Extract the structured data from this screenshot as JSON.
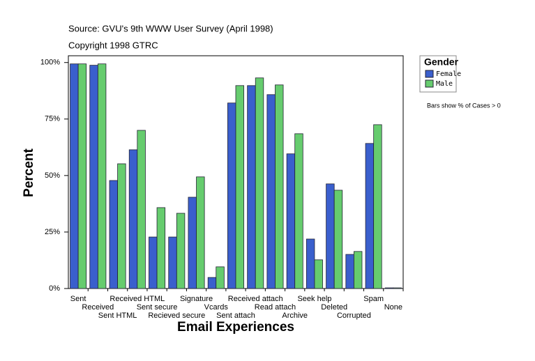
{
  "chart_data": {
    "type": "bar",
    "subtitle_lines": [
      "Source: GVU's 9th WWW User Survey (April 1998)",
      "Copyright 1998 GTRC"
    ],
    "x_label": "Email Experiences",
    "y_label": "Percent",
    "categories": [
      "Sent",
      "Received",
      "Sent HTML",
      "Received HTML",
      "Sent secure",
      "Recieved secure",
      "Signature",
      "Vcards",
      "Sent attach",
      "Received attach",
      "Read attach",
      "Archive",
      "Seek help",
      "Deleted",
      "Corrupted",
      "Spam",
      "None"
    ],
    "series": [
      {
        "name": "Female",
        "color": "#3a5fcd",
        "values": [
          99.4,
          98.8,
          47.8,
          61.4,
          22.8,
          22.8,
          40.4,
          4.9,
          82.1,
          89.8,
          85.8,
          59.6,
          21.9,
          46.3,
          15.1,
          64.2,
          0.3
        ]
      },
      {
        "name": "Male",
        "color": "#66cc6e",
        "values": [
          99.4,
          99.4,
          55.2,
          70.0,
          35.8,
          33.3,
          49.4,
          9.6,
          89.8,
          93.2,
          90.1,
          68.5,
          12.7,
          43.5,
          16.4,
          72.5,
          0.3
        ]
      }
    ],
    "ylim": [
      0,
      103
    ],
    "yticks": [
      {
        "value": 0,
        "label": "0%"
      },
      {
        "value": 25,
        "label": "25%"
      },
      {
        "value": 50,
        "label": "50%"
      },
      {
        "value": 75,
        "label": "75%"
      },
      {
        "value": 100,
        "label": "100%"
      }
    ],
    "legend_title": "Gender",
    "legend_position": "right",
    "note": "Bars show % of Cases > 0"
  }
}
